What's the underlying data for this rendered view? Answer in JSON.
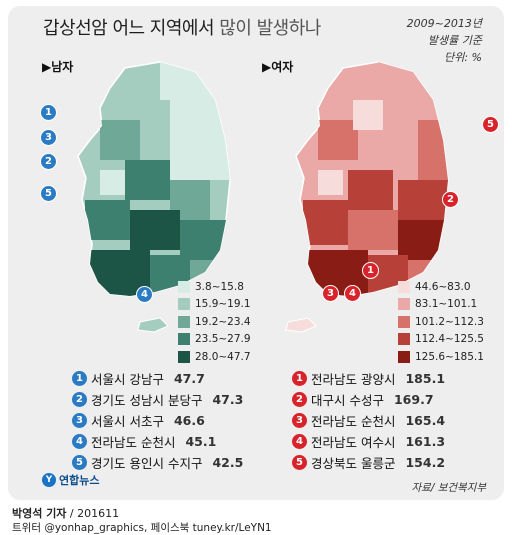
{
  "title": {
    "main": "갑상선암 어느 지역에서",
    "sub": "많이 발생하나"
  },
  "period": {
    "line1": "2009~2013년",
    "line2": "발생률 기준",
    "line3": "단위: %"
  },
  "male": {
    "header": "▶남자",
    "legend": [
      {
        "label": "3.8~15.8",
        "color": "#d6ece4"
      },
      {
        "label": "15.9~19.1",
        "color": "#a5cdbf"
      },
      {
        "label": "19.2~23.4",
        "color": "#6fa896"
      },
      {
        "label": "23.5~27.9",
        "color": "#3e8070"
      },
      {
        "label": "28.0~47.7",
        "color": "#1c5546"
      }
    ],
    "ranking": [
      {
        "num": "1",
        "name": "서울시 강남구",
        "value": "47.7"
      },
      {
        "num": "2",
        "name": "경기도 성남시 분당구",
        "value": "47.3"
      },
      {
        "num": "3",
        "name": "서울시 서초구",
        "value": "46.6"
      },
      {
        "num": "4",
        "name": "전라남도 순천시",
        "value": "45.1"
      },
      {
        "num": "5",
        "name": "경기도 용인시 수지구",
        "value": "42.5"
      }
    ],
    "badge_color": "#2a7bc4"
  },
  "female": {
    "header": "▶여자",
    "legend": [
      {
        "label": "44.6~83.0",
        "color": "#f7dcdc"
      },
      {
        "label": "83.1~101.1",
        "color": "#eaa9a6"
      },
      {
        "label": "101.2~112.3",
        "color": "#d7726b"
      },
      {
        "label": "112.4~125.5",
        "color": "#b74139"
      },
      {
        "label": "125.6~185.1",
        "color": "#8a1c16"
      }
    ],
    "ranking": [
      {
        "num": "1",
        "name": "전라남도 광양시",
        "value": "185.1"
      },
      {
        "num": "2",
        "name": "대구시 수성구",
        "value": "169.7"
      },
      {
        "num": "3",
        "name": "전라남도 순천시",
        "value": "165.4"
      },
      {
        "num": "4",
        "name": "전라남도 여수시",
        "value": "161.3"
      },
      {
        "num": "5",
        "name": "경상북도 울릉군",
        "value": "154.2"
      }
    ],
    "badge_color": "#d8232a"
  },
  "logo": {
    "mark": "Y",
    "text": "연합뉴스"
  },
  "source": "자료/ 보건복지부",
  "credit": {
    "author": "박영석 기자",
    "date": " / 201611",
    "sns": "트위터 @yonhap_graphics, 페이스북 tuney.kr/LeYN1"
  }
}
